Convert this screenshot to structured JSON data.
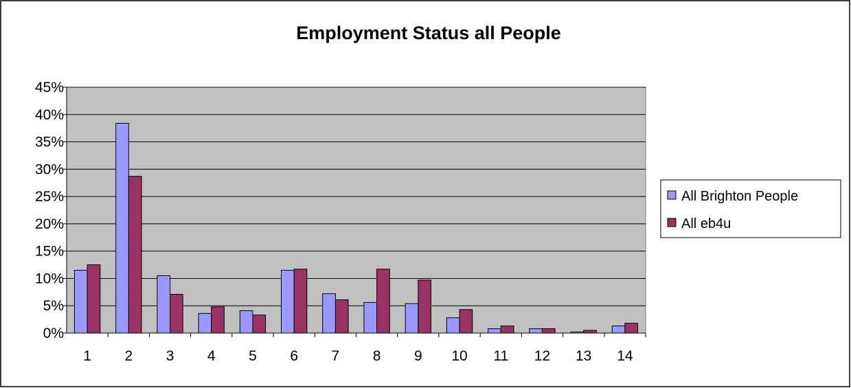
{
  "chart_data": {
    "type": "bar",
    "title": "Employment Status  all People",
    "xlabel": "",
    "ylabel": "",
    "categories": [
      "1",
      "2",
      "3",
      "4",
      "5",
      "6",
      "7",
      "8",
      "9",
      "10",
      "11",
      "12",
      "13",
      "14"
    ],
    "series": [
      {
        "name": "All Brighton People",
        "color": "#9999ff",
        "values": [
          11.5,
          38.4,
          10.5,
          3.6,
          4.1,
          11.5,
          7.2,
          5.6,
          5.4,
          2.8,
          0.8,
          0.8,
          0.2,
          1.3
        ]
      },
      {
        "name": "All eb4u",
        "color": "#993366",
        "values": [
          12.5,
          28.7,
          7.1,
          4.8,
          3.3,
          11.7,
          6.1,
          11.7,
          9.7,
          4.3,
          1.3,
          0.8,
          0.5,
          1.8
        ]
      }
    ],
    "ylim": [
      0,
      45
    ],
    "ytick_step": 5,
    "ytick_format": "percent",
    "plot_background": "#c0c0c0",
    "grid": true,
    "legend_position": "right"
  }
}
